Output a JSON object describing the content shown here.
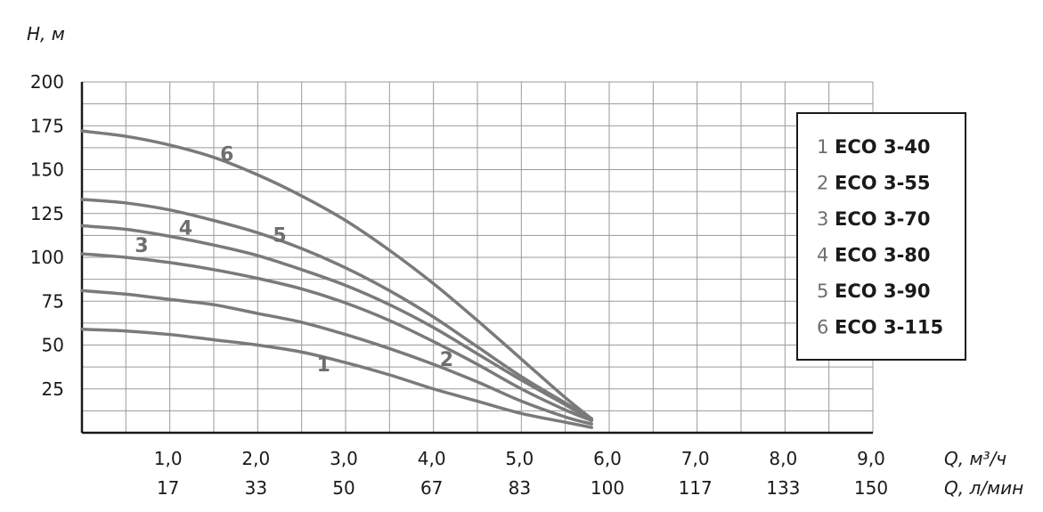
{
  "chart_data": {
    "type": "line",
    "y_axis_title": "H, м",
    "x_axis_title_primary": "Q, м³/ч",
    "x_axis_title_secondary": "Q, л/мин",
    "ylim": [
      0,
      200
    ],
    "xlim": [
      0,
      9
    ],
    "y_ticks": [
      "200",
      "175",
      "150",
      "125",
      "100",
      "75",
      "50",
      "25"
    ],
    "x_ticks_primary": [
      "1,0",
      "2,0",
      "3,0",
      "4,0",
      "5,0",
      "6,0",
      "7,0",
      "8,0",
      "9,0"
    ],
    "x_ticks_secondary": [
      "17",
      "33",
      "50",
      "67",
      "83",
      "100",
      "117",
      "133",
      "150"
    ],
    "grid": true,
    "legend": {
      "position": "right",
      "entries": [
        {
          "num": "1",
          "model": "ECO 3-40"
        },
        {
          "num": "2",
          "model": "ECO 3-55"
        },
        {
          "num": "3",
          "model": "ECO 3-70"
        },
        {
          "num": "4",
          "model": "ECO 3-80"
        },
        {
          "num": "5",
          "model": "ECO 3-90"
        },
        {
          "num": "6",
          "model": "ECO 3-115"
        }
      ]
    },
    "curve_color": "#7a7a7a",
    "series": [
      {
        "label": "1",
        "x": [
          0,
          0.5,
          1,
          1.5,
          2,
          2.5,
          3,
          3.5,
          4,
          4.5,
          5,
          5.5,
          5.8
        ],
        "y": [
          59,
          58,
          56,
          53,
          50,
          46,
          40,
          33,
          25,
          18,
          11,
          6,
          3
        ]
      },
      {
        "label": "2",
        "x": [
          0,
          0.5,
          1,
          1.5,
          2,
          2.5,
          3,
          3.5,
          4,
          4.5,
          5,
          5.5,
          5.8
        ],
        "y": [
          81,
          79,
          76,
          73,
          68,
          63,
          56,
          48,
          39,
          29,
          18,
          9,
          5
        ]
      },
      {
        "label": "3",
        "x": [
          0,
          0.5,
          1,
          1.5,
          2,
          2.5,
          3,
          3.5,
          4,
          4.5,
          5,
          5.5,
          5.8
        ],
        "y": [
          102,
          100,
          97,
          93,
          88,
          82,
          74,
          64,
          52,
          39,
          25,
          13,
          7
        ]
      },
      {
        "label": "4",
        "x": [
          0,
          0.5,
          1,
          1.5,
          2,
          2.5,
          3,
          3.5,
          4,
          4.5,
          5,
          5.5,
          5.8
        ],
        "y": [
          118,
          116,
          112,
          107,
          101,
          93,
          84,
          73,
          60,
          45,
          30,
          16,
          7
        ]
      },
      {
        "label": "5",
        "x": [
          0,
          0.5,
          1,
          1.5,
          2,
          2.5,
          3,
          3.5,
          4,
          4.5,
          5,
          5.5,
          5.8
        ],
        "y": [
          133,
          131,
          127,
          121,
          114,
          105,
          94,
          81,
          66,
          49,
          32,
          17,
          8
        ]
      },
      {
        "label": "6",
        "x": [
          0,
          0.5,
          1,
          1.5,
          2,
          2.5,
          3,
          3.5,
          4,
          4.5,
          5,
          5.5,
          5.8
        ],
        "y": [
          172,
          169,
          164,
          157,
          147,
          135,
          121,
          104,
          85,
          64,
          42,
          20,
          8
        ]
      }
    ],
    "curve_labels": [
      {
        "text": "1",
        "x": 2.75,
        "y": 35
      },
      {
        "text": "2",
        "x": 4.15,
        "y": 38
      },
      {
        "text": "3",
        "x": 0.68,
        "y": 103
      },
      {
        "text": "4",
        "x": 1.18,
        "y": 113
      },
      {
        "text": "5",
        "x": 2.25,
        "y": 109
      },
      {
        "text": "6",
        "x": 1.65,
        "y": 155
      }
    ]
  }
}
